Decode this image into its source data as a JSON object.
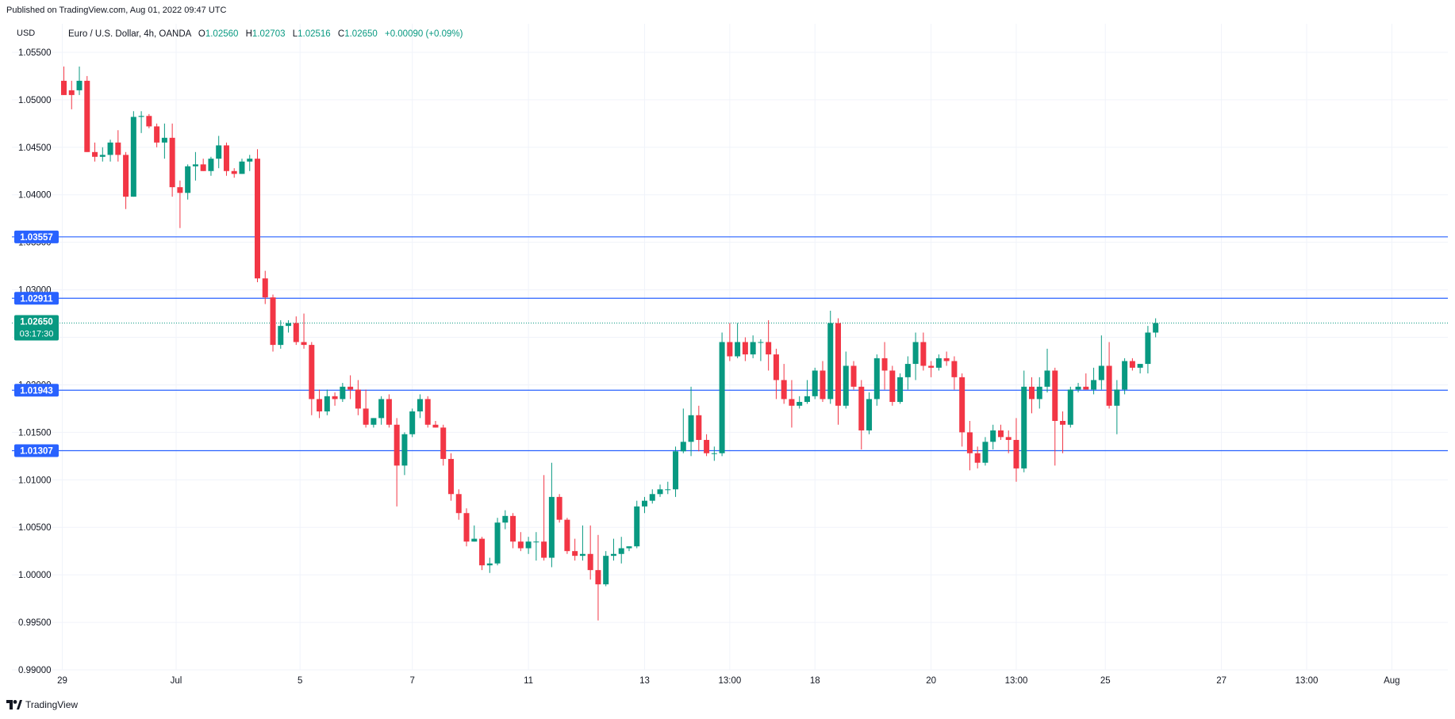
{
  "header": {
    "published": "Published on TradingView.com, Aug 01, 2022 09:47 UTC",
    "currency": "USD",
    "symbol_title": "Euro / U.S. Dollar, 4h, OANDA",
    "ohlc": [
      {
        "key": "O",
        "value": "1.02560"
      },
      {
        "key": "H",
        "value": "1.02703"
      },
      {
        "key": "L",
        "value": "1.02516"
      },
      {
        "key": "C",
        "value": "1.02650"
      }
    ],
    "change": "+0.00090 (+0.09%)"
  },
  "footer": {
    "brand": "TradingView"
  },
  "colors": {
    "up": "#089981",
    "down": "#f23645",
    "hline": "#2962ff",
    "grid": "#f0f3fa",
    "axis_text": "#131722",
    "price_badge": "#089981"
  },
  "current_price": {
    "label": "1.02650",
    "countdown": "03:17:30",
    "value": 1.0265
  },
  "chart_data": {
    "type": "candlestick",
    "title": "Euro / U.S. Dollar, 4h, OANDA",
    "ylim": [
      0.99,
      1.058
    ],
    "y_ticks": [
      {
        "value": 1.055,
        "label": "1.05500"
      },
      {
        "value": 1.05,
        "label": "1.05000"
      },
      {
        "value": 1.045,
        "label": "1.04500"
      },
      {
        "value": 1.04,
        "label": "1.04000"
      },
      {
        "value": 1.035,
        "label": "1.03500"
      },
      {
        "value": 1.03,
        "label": "1.03000"
      },
      {
        "value": 1.025,
        "label": "1.02500"
      },
      {
        "value": 1.02,
        "label": "1.02000"
      },
      {
        "value": 1.015,
        "label": "1.01500"
      },
      {
        "value": 1.01,
        "label": "1.01000"
      },
      {
        "value": 1.005,
        "label": "1.00500"
      },
      {
        "value": 1.0,
        "label": "1.00000"
      },
      {
        "value": 0.995,
        "label": "0.99500"
      },
      {
        "value": 0.99,
        "label": "0.99000"
      }
    ],
    "x_ticks": [
      {
        "index": -0.2,
        "label": "29"
      },
      {
        "index": 14.5,
        "label": "Jul"
      },
      {
        "index": 30.5,
        "label": "5"
      },
      {
        "index": 45,
        "label": "7"
      },
      {
        "index": 60,
        "label": "11"
      },
      {
        "index": 75,
        "label": "13"
      },
      {
        "index": 86,
        "label": "13:00"
      },
      {
        "index": 97,
        "label": "18"
      },
      {
        "index": 112,
        "label": "20"
      },
      {
        "index": 123,
        "label": "13:00"
      },
      {
        "index": 134.5,
        "label": "25"
      },
      {
        "index": 149.5,
        "label": "27"
      },
      {
        "index": 160.5,
        "label": "13:00"
      },
      {
        "index": 171.5,
        "label": "Aug"
      },
      {
        "index": 182.5,
        "label": "13:00"
      }
    ],
    "horizontal_levels": [
      {
        "value": 1.03557,
        "label": "1.03557"
      },
      {
        "value": 1.02911,
        "label": "1.02911"
      },
      {
        "value": 1.01943,
        "label": "1.01943"
      },
      {
        "value": 1.01307,
        "label": "1.01307"
      }
    ],
    "candles": [
      {
        "o": 1.052,
        "h": 1.0535,
        "l": 1.0505,
        "c": 1.0505
      },
      {
        "o": 1.051,
        "h": 1.052,
        "l": 1.049,
        "c": 1.0505
      },
      {
        "o": 1.051,
        "h": 1.0535,
        "l": 1.0505,
        "c": 1.052
      },
      {
        "o": 1.052,
        "h": 1.0525,
        "l": 1.0445,
        "c": 1.0445
      },
      {
        "o": 1.0445,
        "h": 1.0455,
        "l": 1.0435,
        "c": 1.044
      },
      {
        "o": 1.044,
        "h": 1.045,
        "l": 1.0435,
        "c": 1.0442
      },
      {
        "o": 1.0442,
        "h": 1.0458,
        "l": 1.0435,
        "c": 1.0455
      },
      {
        "o": 1.0455,
        "h": 1.0468,
        "l": 1.0435,
        "c": 1.0442
      },
      {
        "o": 1.0442,
        "h": 1.0445,
        "l": 1.0385,
        "c": 1.0398
      },
      {
        "o": 1.0398,
        "h": 1.0488,
        "l": 1.0398,
        "c": 1.0482
      },
      {
        "o": 1.0482,
        "h": 1.0488,
        "l": 1.0465,
        "c": 1.0483
      },
      {
        "o": 1.0483,
        "h": 1.0485,
        "l": 1.047,
        "c": 1.0472
      },
      {
        "o": 1.0472,
        "h": 1.0475,
        "l": 1.045,
        "c": 1.0455
      },
      {
        "o": 1.0455,
        "h": 1.0475,
        "l": 1.0438,
        "c": 1.046
      },
      {
        "o": 1.046,
        "h": 1.0475,
        "l": 1.0398,
        "c": 1.0408
      },
      {
        "o": 1.0408,
        "h": 1.0415,
        "l": 1.0365,
        "c": 1.0402
      },
      {
        "o": 1.0402,
        "h": 1.0432,
        "l": 1.0395,
        "c": 1.043
      },
      {
        "o": 1.043,
        "h": 1.0445,
        "l": 1.0415,
        "c": 1.0432
      },
      {
        "o": 1.0432,
        "h": 1.0438,
        "l": 1.0425,
        "c": 1.0425
      },
      {
        "o": 1.0425,
        "h": 1.044,
        "l": 1.042,
        "c": 1.0438
      },
      {
        "o": 1.0438,
        "h": 1.0462,
        "l": 1.0428,
        "c": 1.0452
      },
      {
        "o": 1.0452,
        "h": 1.0455,
        "l": 1.042,
        "c": 1.0425
      },
      {
        "o": 1.0425,
        "h": 1.0428,
        "l": 1.0418,
        "c": 1.0422
      },
      {
        "o": 1.0422,
        "h": 1.0438,
        "l": 1.0422,
        "c": 1.0435
      },
      {
        "o": 1.0435,
        "h": 1.0442,
        "l": 1.0425,
        "c": 1.0438
      },
      {
        "o": 1.0438,
        "h": 1.0448,
        "l": 1.0308,
        "c": 1.0312
      },
      {
        "o": 1.0312,
        "h": 1.032,
        "l": 1.0285,
        "c": 1.0292
      },
      {
        "o": 1.0292,
        "h": 1.0295,
        "l": 1.0235,
        "c": 1.0242
      },
      {
        "o": 1.0242,
        "h": 1.0268,
        "l": 1.0238,
        "c": 1.0262
      },
      {
        "o": 1.0262,
        "h": 1.0268,
        "l": 1.0255,
        "c": 1.0265
      },
      {
        "o": 1.0265,
        "h": 1.0272,
        "l": 1.0242,
        "c": 1.0245
      },
      {
        "o": 1.0245,
        "h": 1.0275,
        "l": 1.0238,
        "c": 1.0242
      },
      {
        "o": 1.0242,
        "h": 1.0245,
        "l": 1.0168,
        "c": 1.0185
      },
      {
        "o": 1.0185,
        "h": 1.0195,
        "l": 1.0165,
        "c": 1.0172
      },
      {
        "o": 1.0172,
        "h": 1.0195,
        "l": 1.0168,
        "c": 1.0188
      },
      {
        "o": 1.0188,
        "h": 1.0192,
        "l": 1.0178,
        "c": 1.0185
      },
      {
        "o": 1.0185,
        "h": 1.0202,
        "l": 1.0182,
        "c": 1.0198
      },
      {
        "o": 1.0198,
        "h": 1.021,
        "l": 1.0185,
        "c": 1.0195
      },
      {
        "o": 1.0195,
        "h": 1.0205,
        "l": 1.0168,
        "c": 1.0175
      },
      {
        "o": 1.0175,
        "h": 1.0195,
        "l": 1.0155,
        "c": 1.0158
      },
      {
        "o": 1.0158,
        "h": 1.0165,
        "l": 1.0155,
        "c": 1.0165
      },
      {
        "o": 1.0165,
        "h": 1.0188,
        "l": 1.0158,
        "c": 1.0185
      },
      {
        "o": 1.0185,
        "h": 1.019,
        "l": 1.0155,
        "c": 1.0158
      },
      {
        "o": 1.0158,
        "h": 1.0165,
        "l": 1.0072,
        "c": 1.0115
      },
      {
        "o": 1.0115,
        "h": 1.015,
        "l": 1.0105,
        "c": 1.0148
      },
      {
        "o": 1.0148,
        "h": 1.0175,
        "l": 1.0145,
        "c": 1.0172
      },
      {
        "o": 1.0172,
        "h": 1.019,
        "l": 1.0165,
        "c": 1.0185
      },
      {
        "o": 1.0185,
        "h": 1.0188,
        "l": 1.0155,
        "c": 1.0158
      },
      {
        "o": 1.0158,
        "h": 1.0162,
        "l": 1.0155,
        "c": 1.0155
      },
      {
        "o": 1.0155,
        "h": 1.0158,
        "l": 1.0115,
        "c": 1.0122
      },
      {
        "o": 1.0122,
        "h": 1.0128,
        "l": 1.0078,
        "c": 1.0085
      },
      {
        "o": 1.0085,
        "h": 1.009,
        "l": 1.0058,
        "c": 1.0065
      },
      {
        "o": 1.0065,
        "h": 1.007,
        "l": 1.003,
        "c": 1.0035
      },
      {
        "o": 1.0035,
        "h": 1.0052,
        "l": 1.0035,
        "c": 1.0038
      },
      {
        "o": 1.0038,
        "h": 1.004,
        "l": 1.0005,
        "c": 1.001
      },
      {
        "o": 1.001,
        "h": 1.0018,
        "l": 1.0002,
        "c": 1.0012
      },
      {
        "o": 1.0012,
        "h": 1.006,
        "l": 1.001,
        "c": 1.0055
      },
      {
        "o": 1.0055,
        "h": 1.0068,
        "l": 1.0048,
        "c": 1.0062
      },
      {
        "o": 1.0062,
        "h": 1.0065,
        "l": 1.0028,
        "c": 1.0035
      },
      {
        "o": 1.0035,
        "h": 1.0045,
        "l": 1.0025,
        "c": 1.0028
      },
      {
        "o": 1.0028,
        "h": 1.004,
        "l": 1.0022,
        "c": 1.0035
      },
      {
        "o": 1.0035,
        "h": 1.0045,
        "l": 1.0015,
        "c": 1.0035
      },
      {
        "o": 1.0035,
        "h": 1.0105,
        "l": 1.0015,
        "c": 1.0018
      },
      {
        "o": 1.0018,
        "h": 1.0118,
        "l": 1.0008,
        "c": 1.0082
      },
      {
        "o": 1.0082,
        "h": 1.0085,
        "l": 1.0055,
        "c": 1.0058
      },
      {
        "o": 1.0058,
        "h": 1.006,
        "l": 1.0022,
        "c": 1.0025
      },
      {
        "o": 1.0025,
        "h": 1.0038,
        "l": 1.0015,
        "c": 1.002
      },
      {
        "o": 1.002,
        "h": 1.0052,
        "l": 1.0015,
        "c": 1.0022
      },
      {
        "o": 1.0022,
        "h": 1.0052,
        "l": 0.9995,
        "c": 1.0005
      },
      {
        "o": 1.0005,
        "h": 1.0042,
        "l": 0.9952,
        "c": 0.999
      },
      {
        "o": 0.999,
        "h": 1.0025,
        "l": 0.9988,
        "c": 1.002
      },
      {
        "o": 1.002,
        "h": 1.0038,
        "l": 1.0015,
        "c": 1.0022
      },
      {
        "o": 1.0022,
        "h": 1.004,
        "l": 1.0012,
        "c": 1.0028
      },
      {
        "o": 1.0028,
        "h": 1.003,
        "l": 1.0025,
        "c": 1.003
      },
      {
        "o": 1.003,
        "h": 1.0078,
        "l": 1.0028,
        "c": 1.0072
      },
      {
        "o": 1.0072,
        "h": 1.0082,
        "l": 1.0065,
        "c": 1.0078
      },
      {
        "o": 1.0078,
        "h": 1.009,
        "l": 1.0075,
        "c": 1.0085
      },
      {
        "o": 1.0085,
        "h": 1.0095,
        "l": 1.0082,
        "c": 1.009
      },
      {
        "o": 1.009,
        "h": 1.0098,
        "l": 1.0085,
        "c": 1.009
      },
      {
        "o": 1.009,
        "h": 1.0135,
        "l": 1.0082,
        "c": 1.013
      },
      {
        "o": 1.013,
        "h": 1.0175,
        "l": 1.0128,
        "c": 1.014
      },
      {
        "o": 1.014,
        "h": 1.0198,
        "l": 1.0125,
        "c": 1.0168
      },
      {
        "o": 1.0168,
        "h": 1.0178,
        "l": 1.013,
        "c": 1.0142
      },
      {
        "o": 1.0142,
        "h": 1.0148,
        "l": 1.0125,
        "c": 1.0128
      },
      {
        "o": 1.0128,
        "h": 1.0135,
        "l": 1.012,
        "c": 1.0128
      },
      {
        "o": 1.0128,
        "h": 1.0255,
        "l": 1.0125,
        "c": 1.0245
      },
      {
        "o": 1.0245,
        "h": 1.0265,
        "l": 1.0225,
        "c": 1.023
      },
      {
        "o": 1.023,
        "h": 1.0265,
        "l": 1.0228,
        "c": 1.0245
      },
      {
        "o": 1.0245,
        "h": 1.025,
        "l": 1.0225,
        "c": 1.0232
      },
      {
        "o": 1.0232,
        "h": 1.0252,
        "l": 1.0228,
        "c": 1.0245
      },
      {
        "o": 1.0245,
        "h": 1.0248,
        "l": 1.0225,
        "c": 1.0245
      },
      {
        "o": 1.0245,
        "h": 1.0268,
        "l": 1.0215,
        "c": 1.0232
      },
      {
        "o": 1.0232,
        "h": 1.0238,
        "l": 1.0185,
        "c": 1.0205
      },
      {
        "o": 1.0205,
        "h": 1.0222,
        "l": 1.018,
        "c": 1.0185
      },
      {
        "o": 1.0185,
        "h": 1.0205,
        "l": 1.0155,
        "c": 1.0178
      },
      {
        "o": 1.0178,
        "h": 1.0188,
        "l": 1.0175,
        "c": 1.0182
      },
      {
        "o": 1.0182,
        "h": 1.0205,
        "l": 1.018,
        "c": 1.0188
      },
      {
        "o": 1.0188,
        "h": 1.0218,
        "l": 1.0185,
        "c": 1.0215
      },
      {
        "o": 1.0215,
        "h": 1.0225,
        "l": 1.0182,
        "c": 1.0185
      },
      {
        "o": 1.0185,
        "h": 1.0278,
        "l": 1.018,
        "c": 1.0265
      },
      {
        "o": 1.0265,
        "h": 1.027,
        "l": 1.0158,
        "c": 1.0178
      },
      {
        "o": 1.0178,
        "h": 1.0235,
        "l": 1.0175,
        "c": 1.022
      },
      {
        "o": 1.022,
        "h": 1.0225,
        "l": 1.0195,
        "c": 1.0198
      },
      {
        "o": 1.0198,
        "h": 1.0205,
        "l": 1.0132,
        "c": 1.0152
      },
      {
        "o": 1.0152,
        "h": 1.0192,
        "l": 1.0148,
        "c": 1.0185
      },
      {
        "o": 1.0185,
        "h": 1.0232,
        "l": 1.0178,
        "c": 1.0228
      },
      {
        "o": 1.0228,
        "h": 1.0245,
        "l": 1.0195,
        "c": 1.0215
      },
      {
        "o": 1.0215,
        "h": 1.022,
        "l": 1.0178,
        "c": 1.0182
      },
      {
        "o": 1.0182,
        "h": 1.0212,
        "l": 1.018,
        "c": 1.0208
      },
      {
        "o": 1.0208,
        "h": 1.023,
        "l": 1.0195,
        "c": 1.0222
      },
      {
        "o": 1.0222,
        "h": 1.0255,
        "l": 1.0205,
        "c": 1.0245
      },
      {
        "o": 1.0245,
        "h": 1.0255,
        "l": 1.0215,
        "c": 1.022
      },
      {
        "o": 1.022,
        "h": 1.0225,
        "l": 1.0208,
        "c": 1.0218
      },
      {
        "o": 1.0218,
        "h": 1.0232,
        "l": 1.0215,
        "c": 1.0228
      },
      {
        "o": 1.0228,
        "h": 1.0235,
        "l": 1.022,
        "c": 1.0225
      },
      {
        "o": 1.0225,
        "h": 1.023,
        "l": 1.0195,
        "c": 1.0208
      },
      {
        "o": 1.0208,
        "h": 1.0212,
        "l": 1.0135,
        "c": 1.015
      },
      {
        "o": 1.015,
        "h": 1.0162,
        "l": 1.011,
        "c": 1.0128
      },
      {
        "o": 1.0128,
        "h": 1.0135,
        "l": 1.0112,
        "c": 1.0118
      },
      {
        "o": 1.0118,
        "h": 1.0145,
        "l": 1.0115,
        "c": 1.014
      },
      {
        "o": 1.014,
        "h": 1.0158,
        "l": 1.0132,
        "c": 1.0152
      },
      {
        "o": 1.0152,
        "h": 1.0158,
        "l": 1.0142,
        "c": 1.0145
      },
      {
        "o": 1.0145,
        "h": 1.0152,
        "l": 1.0128,
        "c": 1.0142
      },
      {
        "o": 1.0142,
        "h": 1.0165,
        "l": 1.0098,
        "c": 1.0112
      },
      {
        "o": 1.0112,
        "h": 1.0215,
        "l": 1.0108,
        "c": 1.0198
      },
      {
        "o": 1.0198,
        "h": 1.0208,
        "l": 1.017,
        "c": 1.0185
      },
      {
        "o": 1.0185,
        "h": 1.0208,
        "l": 1.0175,
        "c": 1.0198
      },
      {
        "o": 1.0198,
        "h": 1.0238,
        "l": 1.0192,
        "c": 1.0215
      },
      {
        "o": 1.0215,
        "h": 1.0218,
        "l": 1.0115,
        "c": 1.0162
      },
      {
        "o": 1.0162,
        "h": 1.0172,
        "l": 1.0128,
        "c": 1.0158
      },
      {
        "o": 1.0158,
        "h": 1.0198,
        "l": 1.0155,
        "c": 1.0195
      },
      {
        "o": 1.0195,
        "h": 1.0202,
        "l": 1.0192,
        "c": 1.0198
      },
      {
        "o": 1.0198,
        "h": 1.0212,
        "l": 1.0195,
        "c": 1.0195
      },
      {
        "o": 1.0195,
        "h": 1.0218,
        "l": 1.019,
        "c": 1.0205
      },
      {
        "o": 1.0205,
        "h": 1.0252,
        "l": 1.0195,
        "c": 1.022
      },
      {
        "o": 1.022,
        "h": 1.0245,
        "l": 1.0175,
        "c": 1.0178
      },
      {
        "o": 1.0178,
        "h": 1.0205,
        "l": 1.0148,
        "c": 1.0195
      },
      {
        "o": 1.0195,
        "h": 1.0228,
        "l": 1.019,
        "c": 1.0225
      },
      {
        "o": 1.0225,
        "h": 1.0228,
        "l": 1.0215,
        "c": 1.0218
      },
      {
        "o": 1.0218,
        "h": 1.0222,
        "l": 1.0212,
        "c": 1.0222
      },
      {
        "o": 1.0222,
        "h": 1.0262,
        "l": 1.0212,
        "c": 1.0255
      },
      {
        "o": 1.0255,
        "h": 1.027,
        "l": 1.025,
        "c": 1.0265
      }
    ]
  }
}
